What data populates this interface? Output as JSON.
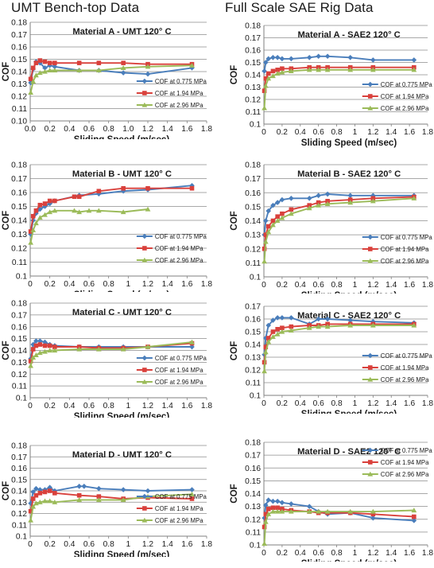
{
  "headers": {
    "left": "UMT Bench-top Data",
    "right": "Full Scale SAE Rig Data"
  },
  "series_colors": [
    "#4a7ebb",
    "#d9413c",
    "#9bbb59"
  ],
  "series_names": [
    "COF at 0.775 MPa",
    "COF at 1.94 MPa",
    "COF at 2.96 MPa"
  ],
  "chart_data": [
    {
      "type": "line",
      "title": "Material A - UMT 120° C",
      "xlabel": "Sliding Speed (m/sec)",
      "ylabel": "COF",
      "xlim": [
        0,
        1.8
      ],
      "ylim": [
        0.1,
        0.18
      ],
      "xticks": [
        "0.0",
        "0.2",
        "0.4",
        "0.6",
        "0.8",
        "1.0",
        "1.2",
        "1.4",
        "1.6",
        "1.8"
      ],
      "yticks": [
        "0.10",
        "0.11",
        "0.12",
        "0.13",
        "0.14",
        "0.15",
        "0.16",
        "0.17",
        "0.18"
      ],
      "legend_position": "lower-right",
      "series": [
        {
          "name": "COF at 0.775 MPa",
          "x": [
            0.005,
            0.03,
            0.06,
            0.1,
            0.15,
            0.2,
            0.25,
            0.5,
            0.7,
            0.95,
            1.2,
            1.65
          ],
          "y": [
            0.131,
            0.142,
            0.148,
            0.147,
            0.143,
            0.145,
            0.144,
            0.141,
            0.141,
            0.139,
            0.138,
            0.143
          ]
        },
        {
          "name": "COF at 1.94 MPa",
          "x": [
            0.005,
            0.03,
            0.06,
            0.1,
            0.15,
            0.2,
            0.25,
            0.5,
            0.7,
            0.95,
            1.2,
            1.65
          ],
          "y": [
            0.134,
            0.143,
            0.147,
            0.149,
            0.148,
            0.147,
            0.147,
            0.147,
            0.147,
            0.147,
            0.146,
            0.146
          ]
        },
        {
          "name": "COF at 2.96 MPa",
          "x": [
            0.005,
            0.03,
            0.06,
            0.1,
            0.15,
            0.2,
            0.25,
            0.5,
            0.7,
            0.95,
            1.2,
            1.65
          ],
          "y": [
            0.123,
            0.132,
            0.137,
            0.139,
            0.14,
            0.141,
            0.141,
            0.141,
            0.141,
            0.143,
            0.144,
            0.145
          ]
        }
      ]
    },
    {
      "type": "line",
      "title": "Material A - SAE2 120° C",
      "xlabel": "Sliding Speed (m/sec)",
      "ylabel": "COF",
      "xlim": [
        0,
        1.8
      ],
      "ylim": [
        0.1,
        0.18
      ],
      "xticks": [
        "0",
        "0.2",
        "0.4",
        "0.6",
        "0.8",
        "1",
        "1.2",
        "1.4",
        "1.6",
        "1.8"
      ],
      "yticks": [
        "0.1",
        "0.11",
        "0.12",
        "0.13",
        "0.14",
        "0.15",
        "0.16",
        "0.17",
        "0.18"
      ],
      "legend_position": "lower-right",
      "series": [
        {
          "name": "COF at 0.775 MPa",
          "x": [
            0.005,
            0.02,
            0.05,
            0.1,
            0.15,
            0.2,
            0.3,
            0.5,
            0.6,
            0.7,
            0.95,
            1.2,
            1.65
          ],
          "y": [
            0.143,
            0.15,
            0.153,
            0.154,
            0.154,
            0.153,
            0.153,
            0.154,
            0.155,
            0.155,
            0.154,
            0.152,
            0.152
          ]
        },
        {
          "name": "COF at 1.94 MPa",
          "x": [
            0.005,
            0.02,
            0.05,
            0.1,
            0.15,
            0.2,
            0.3,
            0.5,
            0.6,
            0.7,
            0.95,
            1.2,
            1.65
          ],
          "y": [
            0.127,
            0.137,
            0.141,
            0.143,
            0.144,
            0.145,
            0.145,
            0.146,
            0.146,
            0.146,
            0.146,
            0.146,
            0.146
          ]
        },
        {
          "name": "COF at 2.96 MPa",
          "x": [
            0.005,
            0.02,
            0.05,
            0.1,
            0.15,
            0.2,
            0.3,
            0.5,
            0.6,
            0.7,
            0.95,
            1.2,
            1.65
          ],
          "y": [
            0.113,
            0.131,
            0.137,
            0.139,
            0.141,
            0.142,
            0.143,
            0.144,
            0.144,
            0.144,
            0.144,
            0.144,
            0.144
          ]
        }
      ]
    },
    {
      "type": "line",
      "title": "Material B - UMT 120° C",
      "xlabel": "Sliding Speed (m/sec)",
      "ylabel": "COF",
      "xlim": [
        0,
        1.8
      ],
      "ylim": [
        0.1,
        0.18
      ],
      "xticks": [
        "0",
        "0.2",
        "0.4",
        "0.6",
        "0.8",
        "1",
        "1.2",
        "1.4",
        "1.6",
        "1.8"
      ],
      "yticks": [
        "0.1",
        "0.11",
        "0.12",
        "0.13",
        "0.14",
        "0.15",
        "0.16",
        "0.17",
        "0.18"
      ],
      "legend_position": "lower-right",
      "series": [
        {
          "name": "COF at 0.775 MPa",
          "x": [
            0.005,
            0.03,
            0.06,
            0.1,
            0.15,
            0.2,
            0.25,
            0.5,
            0.7,
            0.95,
            1.2,
            1.65
          ],
          "y": [
            0.13,
            0.14,
            0.145,
            0.148,
            0.15,
            0.152,
            0.154,
            0.158,
            0.159,
            0.161,
            0.162,
            0.165
          ]
        },
        {
          "name": "COF at 1.94 MPa",
          "x": [
            0.005,
            0.03,
            0.06,
            0.1,
            0.15,
            0.2,
            0.25,
            0.45,
            0.5,
            0.7,
            0.95,
            1.2,
            1.65
          ],
          "y": [
            0.132,
            0.143,
            0.147,
            0.151,
            0.152,
            0.154,
            0.154,
            0.157,
            0.157,
            0.161,
            0.163,
            0.163,
            0.163
          ]
        },
        {
          "name": "COF at 2.96 MPa",
          "x": [
            0.005,
            0.03,
            0.06,
            0.1,
            0.15,
            0.2,
            0.25,
            0.45,
            0.5,
            0.6,
            0.7,
            0.95,
            1.2
          ],
          "y": [
            0.124,
            0.133,
            0.138,
            0.142,
            0.144,
            0.146,
            0.147,
            0.147,
            0.146,
            0.147,
            0.147,
            0.146,
            0.148
          ]
        }
      ]
    },
    {
      "type": "line",
      "title": "Material B - SAE2 120° C",
      "xlabel": "Sliding Speed (m/sec)",
      "ylabel": "COF",
      "xlim": [
        0,
        1.8
      ],
      "ylim": [
        0.1,
        0.18
      ],
      "xticks": [
        "0",
        "0.2",
        "0.4",
        "0.6",
        "0.8",
        "1",
        "1.2",
        "1.4",
        "1.6",
        "1.8"
      ],
      "yticks": [
        "0.1",
        "0.11",
        "0.12",
        "0.13",
        "0.14",
        "0.15",
        "0.16",
        "0.17",
        "0.18"
      ],
      "legend_position": "lower-right",
      "series": [
        {
          "name": "COF at 0.775 MPa",
          "x": [
            0.005,
            0.02,
            0.05,
            0.1,
            0.15,
            0.2,
            0.3,
            0.5,
            0.6,
            0.7,
            0.95,
            1.2,
            1.65
          ],
          "y": [
            0.13,
            0.14,
            0.147,
            0.151,
            0.153,
            0.155,
            0.156,
            0.156,
            0.158,
            0.159,
            0.158,
            0.158,
            0.158
          ]
        },
        {
          "name": "COF at 1.94 MPa",
          "x": [
            0.005,
            0.02,
            0.05,
            0.1,
            0.15,
            0.2,
            0.3,
            0.5,
            0.6,
            0.7,
            0.95,
            1.2,
            1.65
          ],
          "y": [
            0.12,
            0.13,
            0.136,
            0.14,
            0.143,
            0.145,
            0.148,
            0.151,
            0.153,
            0.154,
            0.155,
            0.156,
            0.157
          ]
        },
        {
          "name": "COF at 2.96 MPa",
          "x": [
            0.005,
            0.02,
            0.05,
            0.1,
            0.15,
            0.2,
            0.3,
            0.5,
            0.6,
            0.7,
            0.95,
            1.2,
            1.65
          ],
          "y": [
            0.111,
            0.125,
            0.132,
            0.137,
            0.14,
            0.142,
            0.145,
            0.149,
            0.151,
            0.152,
            0.153,
            0.154,
            0.156
          ]
        }
      ]
    },
    {
      "type": "line",
      "title": "Material C - UMT 120° C",
      "xlabel": "Sliding Speed (m/sec)",
      "ylabel": "COF",
      "xlim": [
        0,
        1.8
      ],
      "ylim": [
        0.1,
        0.18
      ],
      "xticks": [
        "0",
        "0.2",
        "0.4",
        "0.6",
        "0.8",
        "1",
        "1.2",
        "1.4",
        "1.6",
        "1.8"
      ],
      "yticks": [
        "0.1",
        "0.11",
        "0.12",
        "0.13",
        "0.14",
        "0.15",
        "0.16",
        "0.17",
        "0.18"
      ],
      "legend_position": "lower-right",
      "series": [
        {
          "name": "COF at 0.775 MPa",
          "x": [
            0.005,
            0.03,
            0.06,
            0.1,
            0.15,
            0.2,
            0.25,
            0.5,
            0.7,
            0.95,
            1.2,
            1.65
          ],
          "y": [
            0.133,
            0.145,
            0.148,
            0.148,
            0.147,
            0.145,
            0.144,
            0.143,
            0.143,
            0.143,
            0.143,
            0.143
          ]
        },
        {
          "name": "COF at 1.94 MPa",
          "x": [
            0.005,
            0.03,
            0.06,
            0.1,
            0.15,
            0.2,
            0.25,
            0.5,
            0.7,
            0.95,
            1.2,
            1.65
          ],
          "y": [
            0.131,
            0.141,
            0.144,
            0.145,
            0.144,
            0.144,
            0.143,
            0.143,
            0.142,
            0.142,
            0.143,
            0.146
          ]
        },
        {
          "name": "COF at 2.96 MPa",
          "x": [
            0.005,
            0.03,
            0.06,
            0.1,
            0.15,
            0.2,
            0.25,
            0.5,
            0.7,
            0.95,
            1.2,
            1.65
          ],
          "y": [
            0.127,
            0.134,
            0.136,
            0.138,
            0.139,
            0.14,
            0.14,
            0.141,
            0.141,
            0.141,
            0.143,
            0.147
          ]
        }
      ]
    },
    {
      "type": "line",
      "title": "Material C - SAE2 120° C",
      "xlabel": "Sliding Speed (m/sec)",
      "ylabel": "COF",
      "xlim": [
        0,
        1.8
      ],
      "ylim": [
        0.1,
        0.17
      ],
      "xticks": [
        "0",
        "0.2",
        "0.4",
        "0.6",
        "0.8",
        "1",
        "1.2",
        "1.4",
        "1.6",
        "1.8"
      ],
      "yticks": [
        "0.1",
        "0.11",
        "0.12",
        "0.13",
        "0.14",
        "0.15",
        "0.16",
        "0.17"
      ],
      "legend_position": "lower-right",
      "series": [
        {
          "name": "COF at 0.775 MPa",
          "x": [
            0.005,
            0.02,
            0.05,
            0.1,
            0.15,
            0.2,
            0.3,
            0.5,
            0.6,
            0.7,
            0.95,
            1.2,
            1.65
          ],
          "y": [
            0.132,
            0.145,
            0.155,
            0.159,
            0.161,
            0.161,
            0.161,
            0.156,
            0.16,
            0.16,
            0.159,
            0.158,
            0.157
          ]
        },
        {
          "name": "COF at 1.94 MPa",
          "x": [
            0.005,
            0.02,
            0.05,
            0.1,
            0.15,
            0.2,
            0.3,
            0.5,
            0.6,
            0.7,
            0.95,
            1.2,
            1.65
          ],
          "y": [
            0.126,
            0.138,
            0.145,
            0.15,
            0.152,
            0.153,
            0.154,
            0.155,
            0.155,
            0.156,
            0.156,
            0.156,
            0.156
          ]
        },
        {
          "name": "COF at 2.96 MPa",
          "x": [
            0.005,
            0.02,
            0.05,
            0.1,
            0.15,
            0.2,
            0.3,
            0.5,
            0.6,
            0.7,
            0.95,
            1.2,
            1.65
          ],
          "y": [
            0.119,
            0.134,
            0.142,
            0.146,
            0.148,
            0.15,
            0.151,
            0.153,
            0.154,
            0.154,
            0.155,
            0.155,
            0.155
          ]
        }
      ]
    },
    {
      "type": "line",
      "title": "Material D - UMT 120° C",
      "xlabel": "Sliding Speed (m/sec)",
      "ylabel": "COF",
      "xlim": [
        0,
        1.8
      ],
      "ylim": [
        0.1,
        0.18
      ],
      "xticks": [
        "0",
        "0.2",
        "0.4",
        "0.6",
        "0.8",
        "1",
        "1.2",
        "1.4",
        "1.6",
        "1.8"
      ],
      "yticks": [
        "0.1",
        "0.11",
        "0.12",
        "0.13",
        "0.14",
        "0.15",
        "0.16",
        "0.17",
        "0.18"
      ],
      "legend_position": "lower-right",
      "series": [
        {
          "name": "COF at 0.775 MPa",
          "x": [
            0.005,
            0.03,
            0.06,
            0.1,
            0.15,
            0.2,
            0.25,
            0.5,
            0.55,
            0.7,
            0.95,
            1.2,
            1.65
          ],
          "y": [
            0.129,
            0.139,
            0.142,
            0.141,
            0.141,
            0.143,
            0.14,
            0.144,
            0.144,
            0.142,
            0.141,
            0.14,
            0.141
          ]
        },
        {
          "name": "COF at 1.94 MPa",
          "x": [
            0.005,
            0.03,
            0.06,
            0.1,
            0.15,
            0.2,
            0.25,
            0.5,
            0.7,
            0.95,
            1.2,
            1.65
          ],
          "y": [
            0.122,
            0.133,
            0.136,
            0.138,
            0.139,
            0.14,
            0.138,
            0.136,
            0.135,
            0.133,
            0.134,
            0.133
          ]
        },
        {
          "name": "COF at 2.96 MPa",
          "x": [
            0.005,
            0.03,
            0.06,
            0.1,
            0.15,
            0.2,
            0.25,
            0.5,
            0.7,
            0.95,
            1.2,
            1.65
          ],
          "y": [
            0.114,
            0.126,
            0.129,
            0.13,
            0.131,
            0.131,
            0.13,
            0.132,
            0.132,
            0.132,
            0.135,
            0.137
          ]
        }
      ]
    },
    {
      "type": "line",
      "title": "Material D - SAE2 120° C",
      "xlabel": "Sliding Speed (m/sec)",
      "ylabel": "COF",
      "xlim": [
        0,
        1.8
      ],
      "ylim": [
        0.1,
        0.18
      ],
      "xticks": [
        "0",
        "0.2",
        "0.4",
        "0.6",
        "0.8",
        "1",
        "1.2",
        "1.4",
        "1.6",
        "1.8"
      ],
      "yticks": [
        "0.1",
        "0.11",
        "0.12",
        "0.13",
        "0.14",
        "0.15",
        "0.16",
        "0.17",
        "0.18"
      ],
      "legend_position": "upper-right",
      "series": [
        {
          "name": "COF at 0.775 MPa",
          "x": [
            0.005,
            0.02,
            0.05,
            0.1,
            0.15,
            0.2,
            0.3,
            0.5,
            0.6,
            0.7,
            0.95,
            1.2,
            1.65
          ],
          "y": [
            0.121,
            0.131,
            0.135,
            0.134,
            0.134,
            0.133,
            0.132,
            0.13,
            0.126,
            0.124,
            0.125,
            0.121,
            0.119
          ]
        },
        {
          "name": "COF at 1.94 MPa",
          "x": [
            0.005,
            0.02,
            0.05,
            0.1,
            0.15,
            0.2,
            0.3,
            0.5,
            0.6,
            0.7,
            0.95,
            1.2,
            1.65
          ],
          "y": [
            0.114,
            0.124,
            0.128,
            0.129,
            0.129,
            0.128,
            0.127,
            0.126,
            0.125,
            0.125,
            0.125,
            0.124,
            0.122
          ]
        },
        {
          "name": "COF at 2.96 MPa",
          "x": [
            0.005,
            0.02,
            0.05,
            0.1,
            0.15,
            0.2,
            0.3,
            0.5,
            0.6,
            0.7,
            0.95,
            1.2,
            1.65
          ],
          "y": [
            0.101,
            0.118,
            0.124,
            0.126,
            0.126,
            0.126,
            0.126,
            0.126,
            0.126,
            0.126,
            0.126,
            0.126,
            0.127
          ]
        }
      ]
    }
  ]
}
